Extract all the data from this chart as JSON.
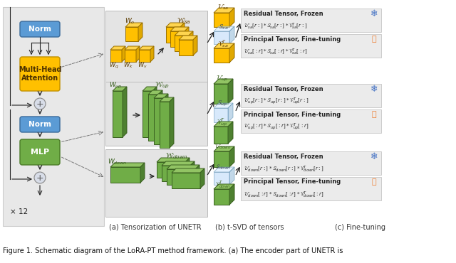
{
  "title": "Figure 1. Schematic diagram of the LoRA-PT method framework. (a) The encoder part of UNETR is",
  "subtitle_a": "(a) Tensorization of UNETR",
  "subtitle_b": "(b) t-SVD of tensors",
  "subtitle_c": "(c) Fine-tuning",
  "norm_color": "#5b9bd5",
  "mha_color": "#ffc000",
  "mlp_color": "#70ad47",
  "snowflake_color": "#4472c4",
  "fire_color": "#ed7d31"
}
